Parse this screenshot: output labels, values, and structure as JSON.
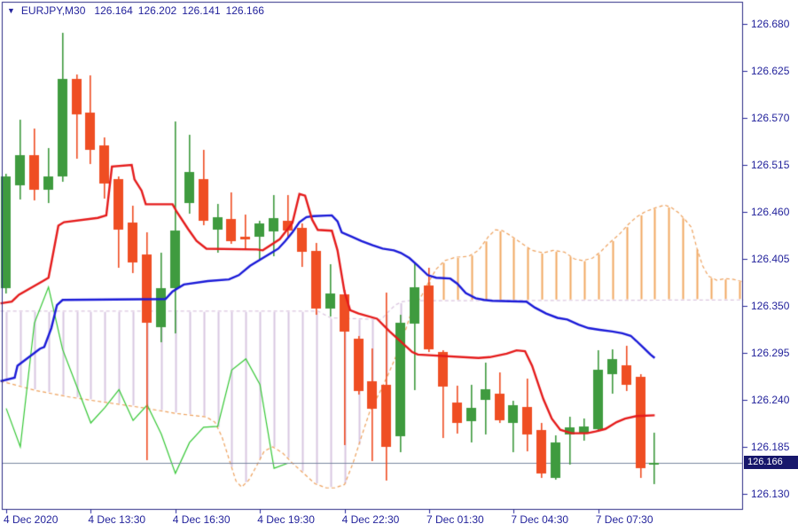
{
  "header": {
    "symbol": "EURJPY,M30",
    "open": "126.164",
    "high": "126.202",
    "low": "126.141",
    "close": "126.166"
  },
  "y_axis": {
    "labels": [
      "126.680",
      "126.625",
      "126.570",
      "126.515",
      "126.460",
      "126.405",
      "126.350",
      "126.295",
      "126.240",
      "126.185",
      "126.130"
    ],
    "prices": [
      126.68,
      126.625,
      126.57,
      126.515,
      126.46,
      126.405,
      126.35,
      126.295,
      126.24,
      126.185,
      126.13
    ]
  },
  "x_axis": {
    "labels": [
      {
        "text": "4 Dec 2020",
        "bar": 0
      },
      {
        "text": "4 Dec 13:30",
        "bar": 6
      },
      {
        "text": "4 Dec 16:30",
        "bar": 12
      },
      {
        "text": "4 Dec 19:30",
        "bar": 18
      },
      {
        "text": "4 Dec 22:30",
        "bar": 24
      },
      {
        "text": "7 Dec 01:30",
        "bar": 30
      },
      {
        "text": "7 Dec 04:30",
        "bar": 36
      },
      {
        "text": "7 Dec 07:30",
        "bar": 42
      }
    ]
  },
  "price_marker": {
    "label": "126.166",
    "price": 126.166
  },
  "colors": {
    "bull": "#3f9b3f",
    "bear": "#ef4e23",
    "tenkan": "#e51b1b",
    "kijun": "#1a1ad8",
    "chikou": "#37c837",
    "senkou_a": "#eea25e",
    "senkou_b": "#dcc6e0",
    "hatch_bear": "#d9c7e2",
    "hatch_bull": "#f2a963",
    "axis_text": "#23239c",
    "frame": "#2b2b85",
    "price_line": "#7a87a0",
    "badge_bg": "#17176b",
    "badge_text": "#ffffff"
  },
  "chart_data": {
    "type": "candlestick",
    "symbol": "EURJPY",
    "timeframe": "M30",
    "y_range": {
      "min": 126.13,
      "max": 126.68
    },
    "candles_ohlc": [
      [
        126.371,
        126.505,
        126.365,
        126.501
      ],
      [
        126.491,
        126.568,
        126.475,
        126.526
      ],
      [
        126.526,
        126.558,
        126.474,
        126.486
      ],
      [
        126.486,
        126.535,
        126.47,
        126.501
      ],
      [
        126.501,
        126.67,
        126.495,
        126.616
      ],
      [
        126.616,
        126.621,
        126.522,
        126.574
      ],
      [
        126.576,
        126.62,
        126.516,
        126.533
      ],
      [
        126.538,
        126.547,
        126.476,
        126.493
      ],
      [
        126.498,
        126.502,
        126.395,
        126.439
      ],
      [
        126.448,
        126.467,
        126.388,
        126.401
      ],
      [
        126.41,
        126.436,
        126.169,
        126.33
      ],
      [
        126.325,
        126.412,
        126.307,
        126.371
      ],
      [
        126.371,
        126.566,
        126.318,
        126.438
      ],
      [
        126.47,
        126.55,
        126.458,
        126.507
      ],
      [
        126.498,
        126.533,
        126.444,
        126.45
      ],
      [
        126.439,
        126.469,
        126.412,
        126.454
      ],
      [
        126.452,
        126.483,
        126.423,
        126.426
      ],
      [
        126.431,
        126.457,
        126.415,
        126.428
      ],
      [
        126.431,
        126.45,
        126.403,
        126.447
      ],
      [
        126.437,
        126.48,
        126.408,
        126.453
      ],
      [
        126.45,
        126.48,
        126.429,
        126.438
      ],
      [
        126.441,
        126.446,
        126.396,
        126.413
      ],
      [
        126.414,
        126.424,
        126.34,
        126.347
      ],
      [
        126.347,
        126.399,
        126.338,
        126.365
      ],
      [
        126.363,
        126.369,
        126.187,
        126.32
      ],
      [
        126.312,
        126.315,
        126.246,
        126.25
      ],
      [
        126.262,
        126.3,
        126.168,
        126.23
      ],
      [
        126.258,
        126.366,
        126.146,
        126.185
      ],
      [
        126.197,
        126.34,
        126.179,
        126.33
      ],
      [
        126.329,
        126.4,
        126.251,
        126.372
      ],
      [
        126.374,
        126.395,
        126.296,
        126.299
      ],
      [
        126.296,
        126.298,
        126.195,
        126.256
      ],
      [
        126.237,
        126.257,
        126.201,
        126.213
      ],
      [
        126.215,
        126.258,
        126.19,
        126.231
      ],
      [
        126.24,
        126.284,
        126.2,
        126.252
      ],
      [
        126.247,
        126.272,
        126.213,
        126.216
      ],
      [
        126.213,
        126.239,
        126.179,
        126.234
      ],
      [
        126.232,
        126.265,
        126.18,
        126.2
      ],
      [
        126.205,
        126.213,
        126.149,
        126.154
      ],
      [
        126.149,
        126.199,
        126.147,
        126.19
      ],
      [
        126.2,
        126.22,
        126.164,
        126.208
      ],
      [
        126.201,
        126.218,
        126.192,
        126.209
      ],
      [
        126.206,
        126.298,
        126.203,
        126.275
      ],
      [
        126.27,
        126.299,
        126.247,
        126.288
      ],
      [
        126.28,
        126.303,
        126.25,
        126.258
      ],
      [
        126.267,
        126.27,
        126.149,
        126.16
      ],
      [
        126.164,
        126.202,
        126.141,
        126.166
      ]
    ],
    "ichimoku": {
      "params": "9,26,52",
      "tenkan": [
        [
          -0.4,
          126.353
        ],
        [
          0.4,
          126.355
        ],
        [
          0.9,
          126.363
        ],
        [
          2.6,
          126.379
        ],
        [
          3.0,
          126.383
        ],
        [
          3.2,
          126.4
        ],
        [
          3.7,
          126.444
        ],
        [
          4.1,
          126.448
        ],
        [
          6.5,
          126.453
        ],
        [
          7.1,
          126.456
        ],
        [
          7.5,
          126.513
        ],
        [
          8.9,
          126.515
        ],
        [
          9.1,
          126.498
        ],
        [
          9.6,
          126.485
        ],
        [
          9.9,
          126.469
        ],
        [
          11.8,
          126.469
        ],
        [
          12.1,
          126.46
        ],
        [
          12.9,
          126.44
        ],
        [
          13.5,
          126.426
        ],
        [
          14.2,
          126.417
        ],
        [
          17.8,
          126.416
        ],
        [
          18.2,
          126.415
        ],
        [
          19.4,
          126.428
        ],
        [
          20.3,
          126.447
        ],
        [
          20.8,
          126.481
        ],
        [
          21.2,
          126.479
        ],
        [
          21.7,
          126.451
        ],
        [
          22.1,
          126.439
        ],
        [
          23.1,
          126.438
        ],
        [
          23.5,
          126.415
        ],
        [
          24.0,
          126.366
        ],
        [
          24.4,
          126.345
        ],
        [
          25.0,
          126.341
        ],
        [
          26.3,
          126.335
        ],
        [
          27.2,
          126.32
        ],
        [
          28.0,
          126.308
        ],
        [
          28.8,
          126.296
        ],
        [
          29.2,
          126.293
        ],
        [
          33.5,
          126.289
        ],
        [
          34.3,
          126.29
        ],
        [
          35.5,
          126.294
        ],
        [
          36.2,
          126.298
        ],
        [
          36.8,
          126.297
        ],
        [
          37.3,
          126.28
        ],
        [
          38.1,
          126.241
        ],
        [
          38.7,
          126.218
        ],
        [
          39.3,
          126.205
        ],
        [
          40.1,
          126.201
        ],
        [
          41.2,
          126.201
        ],
        [
          41.8,
          126.203
        ],
        [
          42.5,
          126.206
        ],
        [
          43.3,
          126.214
        ],
        [
          43.9,
          126.218
        ],
        [
          44.7,
          126.221
        ],
        [
          46.0,
          126.222
        ]
      ],
      "kijun": [
        [
          -0.4,
          126.262
        ],
        [
          0.6,
          126.266
        ],
        [
          0.8,
          126.28
        ],
        [
          2.4,
          126.3
        ],
        [
          2.7,
          126.302
        ],
        [
          3.2,
          126.324
        ],
        [
          3.6,
          126.351
        ],
        [
          4.0,
          126.357
        ],
        [
          11.3,
          126.358
        ],
        [
          11.8,
          126.367
        ],
        [
          12.6,
          126.375
        ],
        [
          14.3,
          126.379
        ],
        [
          15.8,
          126.381
        ],
        [
          16.5,
          126.386
        ],
        [
          17.3,
          126.397
        ],
        [
          18.1,
          126.405
        ],
        [
          18.8,
          126.412
        ],
        [
          19.3,
          126.417
        ],
        [
          19.8,
          126.426
        ],
        [
          20.3,
          126.436
        ],
        [
          20.8,
          126.448
        ],
        [
          21.3,
          126.454
        ],
        [
          21.8,
          126.455
        ],
        [
          23.1,
          126.456
        ],
        [
          23.5,
          126.449
        ],
        [
          23.8,
          126.436
        ],
        [
          24.5,
          126.431
        ],
        [
          25.2,
          126.426
        ],
        [
          26.0,
          126.421
        ],
        [
          26.7,
          126.417
        ],
        [
          27.5,
          126.415
        ],
        [
          28.0,
          126.412
        ],
        [
          28.6,
          126.406
        ],
        [
          29.2,
          126.397
        ],
        [
          29.9,
          126.386
        ],
        [
          30.5,
          126.383
        ],
        [
          31.5,
          126.382
        ],
        [
          32.0,
          126.376
        ],
        [
          32.6,
          126.365
        ],
        [
          33.3,
          126.359
        ],
        [
          33.9,
          126.357
        ],
        [
          34.5,
          126.356
        ],
        [
          36.9,
          126.355
        ],
        [
          37.5,
          126.348
        ],
        [
          38.3,
          126.341
        ],
        [
          39.1,
          126.336
        ],
        [
          39.8,
          126.334
        ],
        [
          40.6,
          126.328
        ],
        [
          41.3,
          126.324
        ],
        [
          42.1,
          126.322
        ],
        [
          43.0,
          126.32
        ],
        [
          43.7,
          126.318
        ],
        [
          44.3,
          126.315
        ],
        [
          44.7,
          126.309
        ],
        [
          45.2,
          126.301
        ],
        [
          45.7,
          126.293
        ],
        [
          46.0,
          126.289
        ]
      ],
      "senkou_a": [
        [
          -0.4,
          126.262
        ],
        [
          2.1,
          126.251
        ],
        [
          4.6,
          126.243
        ],
        [
          7.1,
          126.237
        ],
        [
          9.6,
          126.231
        ],
        [
          12.1,
          126.224
        ],
        [
          14.2,
          126.22
        ],
        [
          14.8,
          126.214
        ],
        [
          15.3,
          126.197
        ],
        [
          15.8,
          126.171
        ],
        [
          16.3,
          126.145
        ],
        [
          16.7,
          126.138
        ],
        [
          17.2,
          126.146
        ],
        [
          17.8,
          126.164
        ],
        [
          18.3,
          126.18
        ],
        [
          18.9,
          126.185
        ],
        [
          19.6,
          126.178
        ],
        [
          20.3,
          126.166
        ],
        [
          21.1,
          126.154
        ],
        [
          21.9,
          126.142
        ],
        [
          22.7,
          126.137
        ],
        [
          23.3,
          126.137
        ],
        [
          24.0,
          126.141
        ],
        [
          24.6,
          126.166
        ],
        [
          25.2,
          126.197
        ],
        [
          25.8,
          126.227
        ],
        [
          26.5,
          126.249
        ],
        [
          27.1,
          126.27
        ],
        [
          27.7,
          126.293
        ],
        [
          28.2,
          126.315
        ],
        [
          28.7,
          126.341
        ],
        [
          29.1,
          126.353
        ],
        [
          29.5,
          126.363
        ],
        [
          30.0,
          126.379
        ],
        [
          30.5,
          126.393
        ],
        [
          31.1,
          126.403
        ],
        [
          31.9,
          126.407
        ],
        [
          32.8,
          126.408
        ],
        [
          33.5,
          126.415
        ],
        [
          34.2,
          126.431
        ],
        [
          34.7,
          126.439
        ],
        [
          35.2,
          126.438
        ],
        [
          35.8,
          126.432
        ],
        [
          36.5,
          126.424
        ],
        [
          37.3,
          126.415
        ],
        [
          38.1,
          126.412
        ],
        [
          38.8,
          126.415
        ],
        [
          39.6,
          126.413
        ],
        [
          40.3,
          126.405
        ],
        [
          40.9,
          126.403
        ],
        [
          41.6,
          126.406
        ],
        [
          42.2,
          126.414
        ],
        [
          42.8,
          126.424
        ],
        [
          43.5,
          126.434
        ],
        [
          44.1,
          126.445
        ],
        [
          44.7,
          126.454
        ],
        [
          45.3,
          126.46
        ],
        [
          46.1,
          126.465
        ],
        [
          46.7,
          126.468
        ],
        [
          47.2,
          126.465
        ],
        [
          47.7,
          126.459
        ],
        [
          48.2,
          126.45
        ],
        [
          48.6,
          126.442
        ],
        [
          49.0,
          126.417
        ],
        [
          49.4,
          126.397
        ],
        [
          49.8,
          126.385
        ],
        [
          50.4,
          126.38
        ],
        [
          51.0,
          126.382
        ],
        [
          51.6,
          126.381
        ],
        [
          52.3,
          126.378
        ]
      ],
      "senkou_b": [
        [
          -0.4,
          126.344
        ],
        [
          22.1,
          126.344
        ],
        [
          23.0,
          126.336
        ],
        [
          26.6,
          126.334
        ],
        [
          27.1,
          126.343
        ],
        [
          27.6,
          126.351
        ],
        [
          28.1,
          126.355
        ],
        [
          28.6,
          126.356
        ],
        [
          52.3,
          126.357
        ]
      ],
      "chikou_shift": -26,
      "chikou_end_bar": 20
    }
  }
}
